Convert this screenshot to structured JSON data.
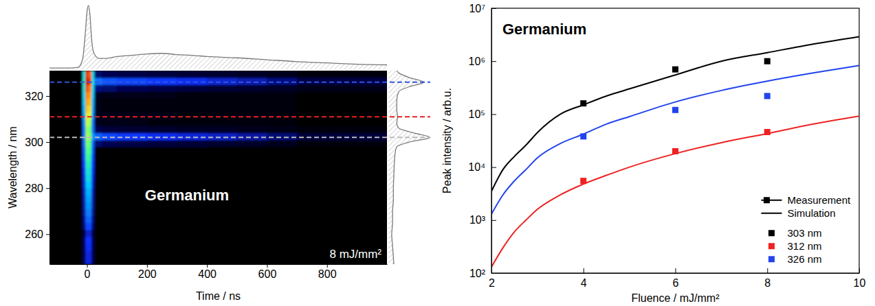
{
  "chart_data": [
    {
      "type": "heatmap",
      "title": "Germanium",
      "annotation": "8 mJ/mm²",
      "x_label": "Time / ns",
      "y_label": "Wavelength / nm",
      "xlim": [
        -125,
        1000
      ],
      "xticks": [
        0,
        200,
        400,
        600,
        800
      ],
      "ylim": [
        247,
        331
      ],
      "yticks": [
        260,
        280,
        300,
        320
      ],
      "color_range": [
        0,
        1
      ],
      "x_edges": [
        -125,
        -15,
        -5,
        5,
        15,
        25,
        50,
        100,
        200,
        300,
        400,
        500,
        600,
        700,
        1000
      ],
      "y_edges": [
        247,
        250,
        253,
        256,
        259,
        262,
        265,
        268,
        271,
        274,
        277,
        280,
        283,
        286,
        289,
        292,
        295,
        298,
        301,
        304,
        307,
        310,
        313,
        316,
        319,
        322,
        325,
        328,
        331
      ],
      "cells": [
        [
          0,
          0.1,
          0.22,
          0.22,
          0.1,
          0,
          0,
          0,
          0,
          0,
          0,
          0,
          0,
          0
        ],
        [
          0,
          0.1,
          0.22,
          0.22,
          0.1,
          0,
          0,
          0,
          0,
          0,
          0,
          0,
          0,
          0
        ],
        [
          0,
          0.1,
          0.24,
          0.24,
          0.1,
          0,
          0,
          0,
          0,
          0,
          0,
          0,
          0,
          0
        ],
        [
          0,
          0.1,
          0.25,
          0.25,
          0.1,
          0,
          0,
          0,
          0,
          0,
          0,
          0,
          0,
          0
        ],
        [
          0,
          0.08,
          0.2,
          0.2,
          0.08,
          0,
          0,
          0,
          0,
          0,
          0,
          0,
          0,
          0
        ],
        [
          0,
          0.12,
          0.28,
          0.28,
          0.12,
          0,
          0,
          0,
          0,
          0,
          0,
          0,
          0,
          0
        ],
        [
          0,
          0.14,
          0.32,
          0.32,
          0.14,
          0,
          0,
          0,
          0,
          0,
          0,
          0,
          0,
          0
        ],
        [
          0,
          0.15,
          0.35,
          0.35,
          0.15,
          0,
          0,
          0,
          0,
          0,
          0,
          0,
          0,
          0
        ],
        [
          0,
          0.16,
          0.38,
          0.38,
          0.16,
          0,
          0,
          0,
          0,
          0,
          0,
          0,
          0,
          0
        ],
        [
          0,
          0.17,
          0.4,
          0.4,
          0.17,
          0,
          0,
          0,
          0,
          0,
          0,
          0,
          0,
          0
        ],
        [
          0,
          0.18,
          0.42,
          0.42,
          0.18,
          0,
          0,
          0,
          0,
          0,
          0,
          0,
          0,
          0
        ],
        [
          0,
          0.2,
          0.45,
          0.45,
          0.2,
          0,
          0,
          0,
          0,
          0,
          0,
          0,
          0,
          0
        ],
        [
          0,
          0.22,
          0.5,
          0.48,
          0.22,
          0,
          0,
          0,
          0,
          0,
          0,
          0,
          0,
          0
        ],
        [
          0,
          0.24,
          0.53,
          0.5,
          0.24,
          0,
          0,
          0,
          0,
          0,
          0,
          0,
          0,
          0
        ],
        [
          0,
          0.26,
          0.56,
          0.53,
          0.26,
          0,
          0,
          0,
          0,
          0,
          0,
          0,
          0,
          0
        ],
        [
          0,
          0.28,
          0.6,
          0.56,
          0.28,
          0,
          0,
          0,
          0,
          0,
          0,
          0,
          0,
          0
        ],
        [
          0,
          0.3,
          0.62,
          0.6,
          0.3,
          0,
          0,
          0,
          0,
          0,
          0,
          0,
          0,
          0
        ],
        [
          0,
          0.32,
          0.66,
          0.62,
          0.32,
          0.12,
          0.1,
          0.09,
          0.08,
          0.07,
          0.06,
          0.05,
          0.04,
          0.02
        ],
        [
          0,
          0.35,
          0.7,
          0.66,
          0.4,
          0.32,
          0.28,
          0.26,
          0.24,
          0.22,
          0.2,
          0.17,
          0.13,
          0.08
        ],
        [
          0,
          0.34,
          0.68,
          0.64,
          0.34,
          0.1,
          0.08,
          0.07,
          0.06,
          0.05,
          0.05,
          0.04,
          0.03,
          0.02
        ],
        [
          0,
          0.36,
          0.72,
          0.68,
          0.34,
          0.04,
          0.03,
          0.03,
          0.02,
          0.02,
          0.02,
          0.02,
          0.01,
          0
        ],
        [
          0,
          0.4,
          0.78,
          0.74,
          0.38,
          0.04,
          0.03,
          0.03,
          0.03,
          0.02,
          0.02,
          0.02,
          0.01,
          0
        ],
        [
          0,
          0.42,
          0.82,
          0.78,
          0.4,
          0.03,
          0.02,
          0.02,
          0.02,
          0.02,
          0.01,
          0.01,
          0.01,
          0
        ],
        [
          0,
          0.45,
          0.86,
          0.82,
          0.42,
          0.03,
          0.02,
          0.02,
          0.02,
          0.02,
          0.01,
          0.01,
          0.01,
          0
        ],
        [
          0,
          0.48,
          0.9,
          0.86,
          0.45,
          0.04,
          0.03,
          0.03,
          0.03,
          0.02,
          0.02,
          0.02,
          0.01,
          0
        ],
        [
          0,
          0.5,
          0.94,
          0.9,
          0.48,
          0.14,
          0.12,
          0.1,
          0.09,
          0.08,
          0.07,
          0.06,
          0.05,
          0.03
        ],
        [
          0,
          0.52,
          1,
          0.95,
          0.5,
          0.34,
          0.3,
          0.28,
          0.26,
          0.24,
          0.21,
          0.18,
          0.14,
          0.09
        ],
        [
          0,
          0.5,
          0.96,
          0.92,
          0.48,
          0.12,
          0.1,
          0.09,
          0.08,
          0.07,
          0.06,
          0.05,
          0.04,
          0.02
        ]
      ],
      "lines": [
        {
          "value": 326,
          "color": "#3355dd",
          "line_style": "dashed"
        },
        {
          "value": 311,
          "color": "#e52222",
          "line_style": "dashed"
        },
        {
          "value": 302,
          "color": "#bbbbbb",
          "line_style": "dashed"
        }
      ],
      "time_profile": {
        "x": [
          -125,
          -60,
          -30,
          -15,
          -5,
          0,
          5,
          10,
          15,
          20,
          30,
          40,
          60,
          100,
          150,
          200,
          250,
          300,
          350,
          400,
          500,
          600,
          700,
          800,
          900,
          1000
        ],
        "values": [
          0.02,
          0.02,
          0.03,
          0.15,
          0.6,
          0.9,
          1,
          0.85,
          0.5,
          0.3,
          0.2,
          0.17,
          0.17,
          0.2,
          0.22,
          0.24,
          0.25,
          0.23,
          0.22,
          0.2,
          0.18,
          0.15,
          0.12,
          0.1,
          0.08,
          0.07
        ]
      },
      "spectrum_profile": {
        "wavelength": [
          247,
          250,
          255,
          260,
          265,
          270,
          275,
          280,
          285,
          290,
          295,
          298,
          300,
          302,
          304,
          306,
          308,
          311,
          314,
          318,
          322,
          324,
          326,
          328,
          330,
          331
        ],
        "values": [
          0.13,
          0.12,
          0.1,
          0.08,
          0.1,
          0.1,
          0.12,
          0.12,
          0.13,
          0.14,
          0.16,
          0.2,
          0.5,
          1,
          0.6,
          0.25,
          0.2,
          0.22,
          0.2,
          0.2,
          0.25,
          0.5,
          0.85,
          0.5,
          0.25,
          0.2
        ]
      }
    },
    {
      "type": "line",
      "title": "Germanium",
      "x_label": "Fluence / mJ/mm²",
      "y_label": "Peak intensity / arb.u.",
      "log": "y",
      "xlim": [
        2,
        10
      ],
      "xticks": [
        2,
        4,
        6,
        8,
        10
      ],
      "ylim": [
        100,
        10000000
      ],
      "yticks": [
        {
          "value": 100,
          "label": "10²"
        },
        {
          "value": 1000,
          "label": "10³"
        },
        {
          "value": 10000,
          "label": "10⁴"
        },
        {
          "value": 100000,
          "label": "10⁵"
        },
        {
          "value": 1000000,
          "label": "10⁶"
        },
        {
          "value": 10000000,
          "label": "10⁷"
        }
      ],
      "legend": "lower right",
      "legend_titles": [
        "Measurement",
        "Simulation"
      ],
      "series": [
        {
          "name": "303 nm",
          "color": "#000000",
          "marker": "square",
          "line_style": "solid",
          "measurement": {
            "x": [
              4,
              6,
              8
            ],
            "values": [
              160000,
              700000,
              1000000
            ]
          },
          "simulation": {
            "x": [
              2,
              2.25,
              2.5,
              2.75,
              3,
              3.5,
              4,
              4.5,
              5,
              6,
              7,
              8,
              9,
              10
            ],
            "values": [
              3500,
              9000,
              16000,
              26000,
              45000,
              100000,
              150000,
              220000,
              300000,
              550000,
              1000000,
              1450000,
              2100000,
              2900000
            ]
          }
        },
        {
          "name": "312 nm",
          "color": "#ee2222",
          "marker": "square",
          "line_style": "solid",
          "measurement": {
            "x": [
              4,
              6,
              8
            ],
            "values": [
              5500,
              20000,
              46000
            ]
          },
          "simulation": {
            "x": [
              2,
              2.25,
              2.5,
              2.75,
              3,
              3.5,
              4,
              4.5,
              5,
              6,
              7,
              8,
              9,
              10
            ],
            "values": [
              130,
              300,
              600,
              1000,
              1600,
              3000,
              4800,
              7000,
              10000,
              18000,
              29000,
              43000,
              65000,
              92000
            ]
          }
        },
        {
          "name": "326 nm",
          "color": "#2244ee",
          "marker": "square",
          "line_style": "solid",
          "measurement": {
            "x": [
              4,
              6,
              8
            ],
            "values": [
              38000,
              120000,
              220000
            ]
          },
          "simulation": {
            "x": [
              2,
              2.25,
              2.5,
              2.75,
              3,
              3.5,
              4,
              4.5,
              5,
              6,
              7,
              8,
              9,
              10
            ],
            "values": [
              1300,
              3000,
              5500,
              9000,
              15000,
              28000,
              42000,
              65000,
              90000,
              170000,
              280000,
              420000,
              600000,
              830000
            ]
          }
        }
      ]
    }
  ]
}
